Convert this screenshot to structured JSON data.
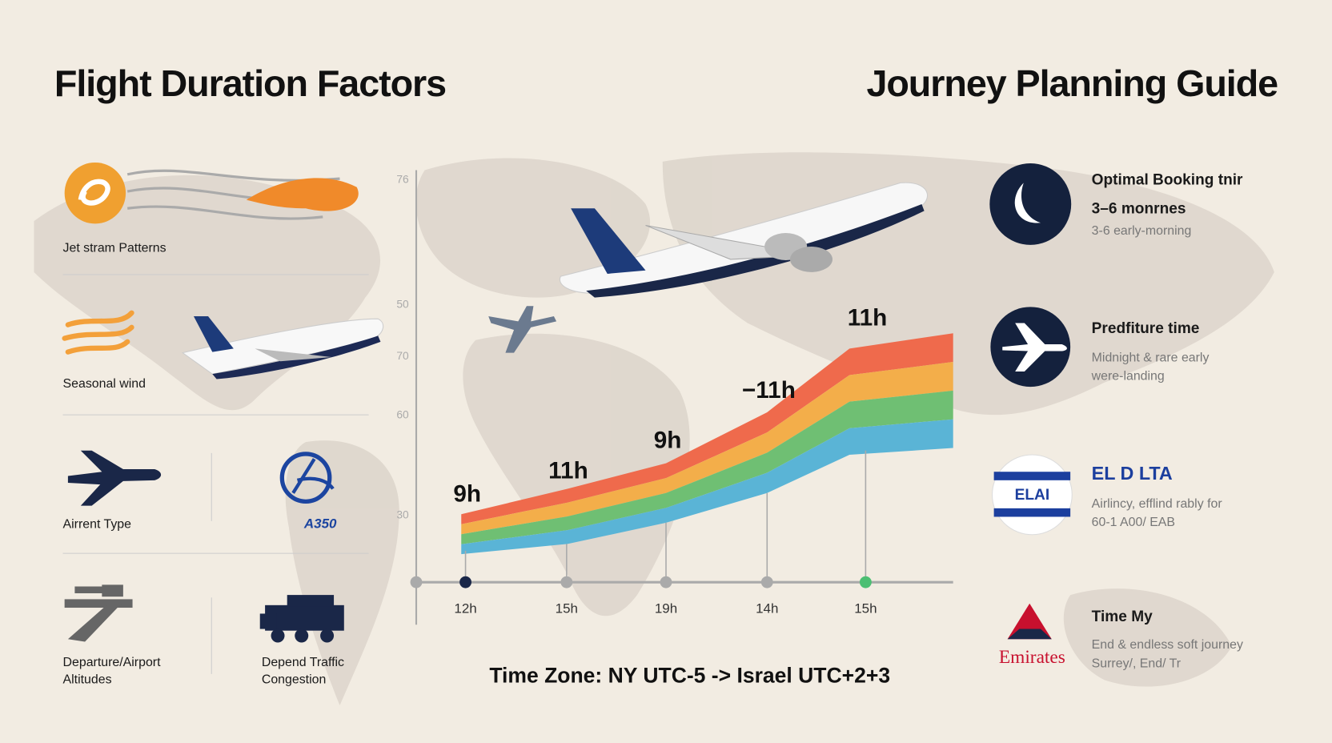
{
  "left": {
    "title": "Flight Duration Factors",
    "items": [
      {
        "label": "Jet stram Patterns"
      },
      {
        "label": "Seasonal wind"
      },
      {
        "label": "Airrent Type"
      },
      {
        "label": "A350"
      },
      {
        "label": "Departure/Airport",
        "label2": "Altitudes"
      },
      {
        "label": "Depend Traffic",
        "label2": "Congestion"
      }
    ]
  },
  "chart": {
    "y_labels": [
      "76",
      "50",
      "70",
      "60",
      "30"
    ],
    "point_labels": [
      "9h",
      "11h",
      "9h",
      "−11h",
      "11h"
    ],
    "x_labels": [
      "12h",
      "15h",
      "19h",
      "14h",
      "15h"
    ],
    "footer": "Time Zone: NY UTC-5 -> Israel UTC+2+3"
  },
  "right": {
    "title": "Journey Planning Guide",
    "items": [
      {
        "title": "Optimal Booking tnir",
        "subtitle": "3–6 monrnes",
        "text": "3-6 early-morning"
      },
      {
        "title": "Predfiture time",
        "text": "Midnight & rare early",
        "text2": "were-landing"
      },
      {
        "title": "EL D LTA",
        "logo": "ELAI",
        "text": "Airlincy, efflind rably for",
        "text2": "60-1 A00/ EAB"
      },
      {
        "title": "Time My",
        "logo": "Emirates",
        "text": "End & endless soft journey",
        "text2": "Surrey/, End/ Tr"
      }
    ]
  }
}
